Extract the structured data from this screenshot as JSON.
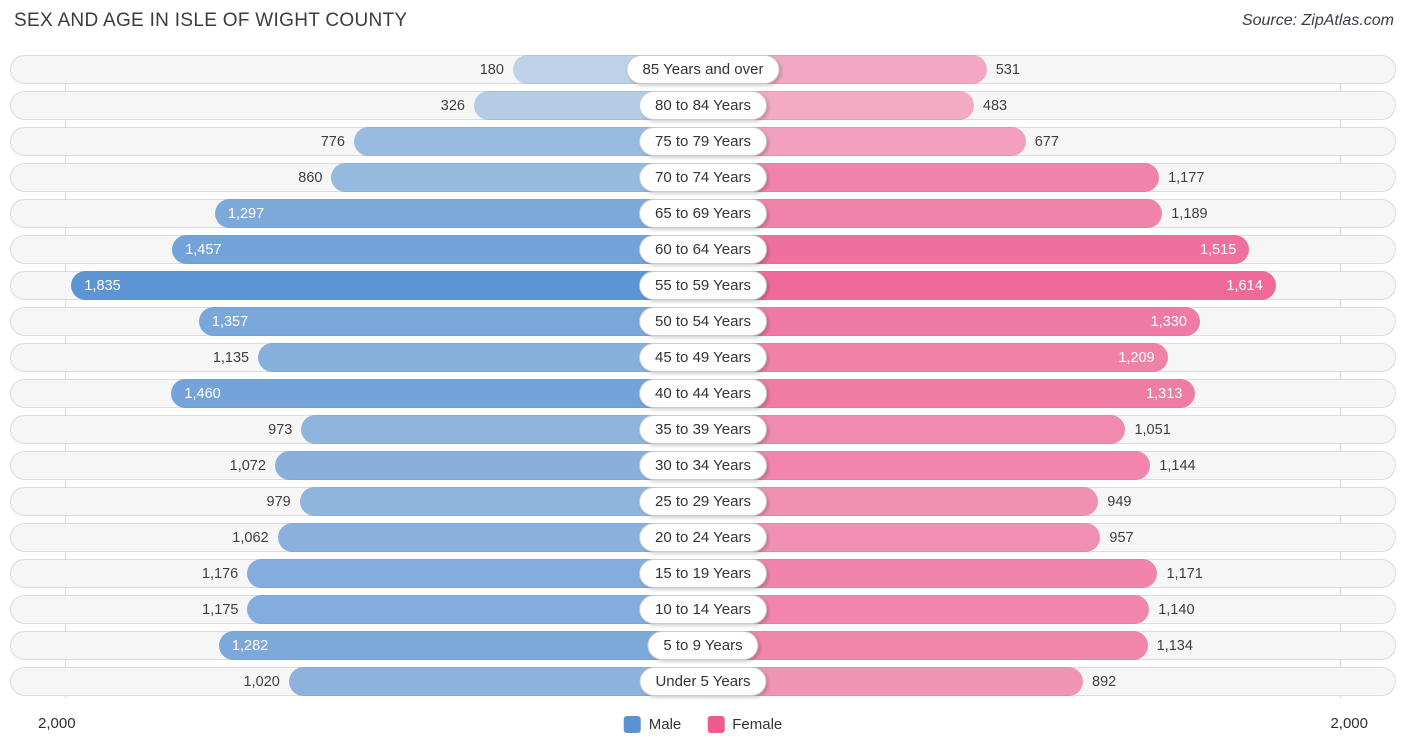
{
  "title": "SEX AND AGE IN ISLE OF WIGHT COUNTY",
  "source": "Source: ZipAtlas.com",
  "axis": {
    "left_max": "2,000",
    "right_max": "2,000"
  },
  "legend": {
    "male_label": "Male",
    "female_label": "Female"
  },
  "colors": {
    "male": "#5b93d2",
    "female": "#ee5b8e",
    "track": "#f6f6f6",
    "track_border": "#dcdcdc"
  },
  "chart_data": {
    "type": "bar",
    "subtype": "population-pyramid",
    "title": "SEX AND AGE IN ISLE OF WIGHT COUNTY",
    "xlim": [
      0,
      2000
    ],
    "grid": "edge ticks at 2,000 on both sides",
    "legend_position": "bottom-center",
    "categories": [
      "85 Years and over",
      "80 to 84 Years",
      "75 to 79 Years",
      "70 to 74 Years",
      "65 to 69 Years",
      "60 to 64 Years",
      "55 to 59 Years",
      "50 to 54 Years",
      "45 to 49 Years",
      "40 to 44 Years",
      "35 to 39 Years",
      "30 to 34 Years",
      "25 to 29 Years",
      "20 to 24 Years",
      "15 to 19 Years",
      "10 to 14 Years",
      "5 to 9 Years",
      "Under 5 Years"
    ],
    "series": [
      {
        "name": "Male",
        "values": [
          180,
          326,
          776,
          860,
          1297,
          1457,
          1835,
          1357,
          1135,
          1460,
          973,
          1072,
          979,
          1062,
          1176,
          1175,
          1282,
          1020
        ]
      },
      {
        "name": "Female",
        "values": [
          531,
          483,
          677,
          1177,
          1189,
          1515,
          1614,
          1330,
          1209,
          1313,
          1051,
          1144,
          949,
          957,
          1171,
          1140,
          1134,
          892
        ]
      }
    ]
  }
}
